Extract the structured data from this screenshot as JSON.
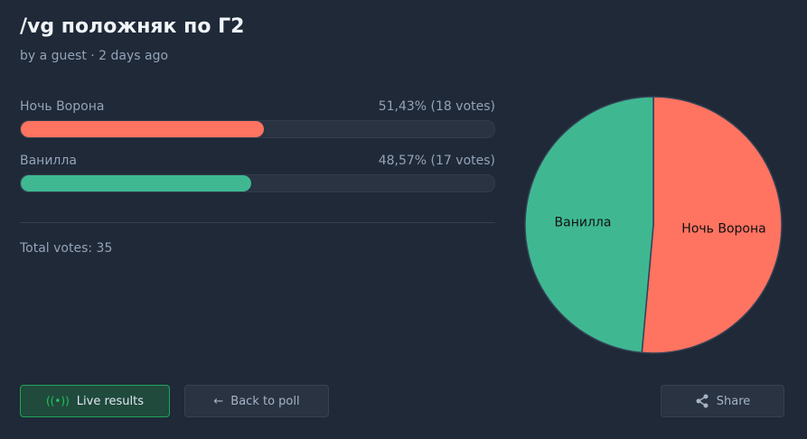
{
  "poll": {
    "title": "/vg положняк по Г2",
    "meta": "by a guest · 2 days ago",
    "total": "Total votes: 35"
  },
  "options": [
    {
      "label": "Ночь Ворона",
      "result": "51,43% (18 votes)",
      "percent": 51.43,
      "votes": 18,
      "color": "#ff7361"
    },
    {
      "label": "Ванилла",
      "result": "48,57% (17 votes)",
      "percent": 48.57,
      "votes": 17,
      "color": "#3fb892"
    }
  ],
  "chart_data": {
    "type": "pie",
    "categories": [
      "Ночь Ворона",
      "Ванилла"
    ],
    "values": [
      18,
      17
    ],
    "colors": [
      "#ff7361",
      "#3fb892"
    ]
  },
  "buttons": {
    "live": "Live results",
    "back": "Back to poll",
    "share": "Share"
  },
  "icons": {
    "live": "broadcast-icon",
    "back": "arrow-left-icon",
    "share": "share-icon"
  }
}
